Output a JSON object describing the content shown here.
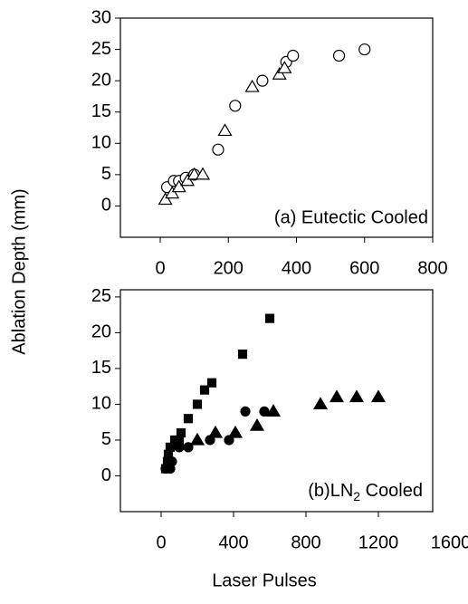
{
  "chart_data": [
    {
      "type": "scatter",
      "ylabel": "Ablation Depth (mm)",
      "annotation": "(a) Eutectic Cooled",
      "xlim": [
        -117,
        800
      ],
      "xticks": [
        0,
        200,
        400,
        600,
        800
      ],
      "ylim": [
        -5,
        30
      ],
      "yticks": [
        0,
        5,
        10,
        15,
        20,
        25,
        30
      ],
      "series": [
        {
          "marker": "circle",
          "filled": false,
          "color": "#000000",
          "x": [
            20,
            40,
            55,
            75,
            100,
            170,
            220,
            300,
            370,
            390,
            525,
            600
          ],
          "values": [
            3,
            4,
            4,
            4.5,
            5,
            9,
            16,
            20,
            23,
            24,
            24,
            25
          ]
        },
        {
          "marker": "triangle",
          "filled": false,
          "color": "#000000",
          "x": [
            15,
            35,
            55,
            80,
            100,
            125,
            190,
            270,
            350,
            365
          ],
          "values": [
            1,
            2,
            3,
            4,
            5,
            5,
            12,
            19,
            21,
            22
          ]
        }
      ]
    },
    {
      "type": "scatter",
      "xlabel": "Laser Pulses",
      "annotation": "(b)LN",
      "annotation_sub": "2",
      "annotation_tail": " Cooled",
      "xlim": [
        -225,
        1500
      ],
      "xticks": [
        0,
        400,
        800,
        1200,
        1600
      ],
      "ylim": [
        -5,
        26
      ],
      "yticks": [
        0,
        5,
        10,
        15,
        20,
        25
      ],
      "series": [
        {
          "marker": "square",
          "filled": true,
          "color": "#000000",
          "x": [
            25,
            35,
            40,
            50,
            75,
            100,
            110,
            150,
            200,
            240,
            280,
            450,
            600
          ],
          "values": [
            1,
            2,
            3,
            4,
            5,
            5,
            6,
            8,
            10,
            12,
            13,
            17,
            22
          ]
        },
        {
          "marker": "circle",
          "filled": true,
          "color": "#000000",
          "x": [
            25,
            50,
            60,
            100,
            150,
            270,
            375,
            465,
            570
          ],
          "values": [
            1,
            1,
            2,
            4,
            4,
            5,
            5,
            9,
            9
          ]
        },
        {
          "marker": "triangle",
          "filled": true,
          "color": "#000000",
          "x": [
            200,
            300,
            410,
            530,
            620,
            880,
            970,
            1080,
            1200
          ],
          "values": [
            5,
            6,
            6,
            7,
            9,
            10,
            11,
            11,
            11
          ]
        }
      ]
    }
  ]
}
